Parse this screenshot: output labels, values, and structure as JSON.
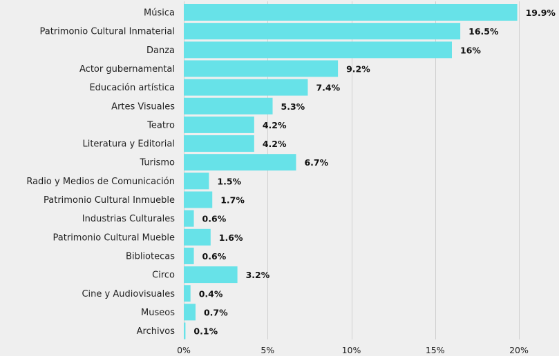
{
  "colors": {
    "bar": "#67e2e8",
    "background": "#efefef",
    "grid": "#cfcfcf",
    "text": "#1f1f1f"
  },
  "chart_data": {
    "type": "bar",
    "orientation": "horizontal",
    "title": "",
    "xlabel": "",
    "ylabel": "",
    "grid": true,
    "legend": "none",
    "xlim": [
      0,
      20
    ],
    "x_ticks": [
      0,
      5,
      10,
      15,
      20
    ],
    "x_tick_labels": [
      "0%",
      "5%",
      "10%",
      "15%",
      "20%"
    ],
    "categories": [
      "Música",
      "Patrimonio Cultural Inmaterial",
      "Danza",
      "Actor gubernamental",
      "Educación artística",
      "Artes Visuales",
      "Teatro",
      "Literatura y Editorial",
      "Turismo",
      "Radio y Medios de Comunicación",
      "Patrimonio Cultural Inmueble",
      "Industrias Culturales",
      "Patrimonio Cultural Mueble",
      "Bibliotecas",
      "Circo",
      "Cine y Audiovisuales",
      "Museos",
      "Archivos"
    ],
    "values": [
      19.9,
      16.5,
      16,
      9.2,
      7.4,
      5.3,
      4.2,
      4.2,
      6.7,
      1.5,
      1.7,
      0.6,
      1.6,
      0.6,
      3.2,
      0.4,
      0.7,
      0.1
    ],
    "value_labels": [
      "19.9%",
      "16.5%",
      "16%",
      "9.2%",
      "7.4%",
      "5.3%",
      "4.2%",
      "4.2%",
      "6.7%",
      "1.5%",
      "1.7%",
      "0.6%",
      "1.6%",
      "0.6%",
      "3.2%",
      "0.4%",
      "0.7%",
      "0.1%"
    ]
  }
}
